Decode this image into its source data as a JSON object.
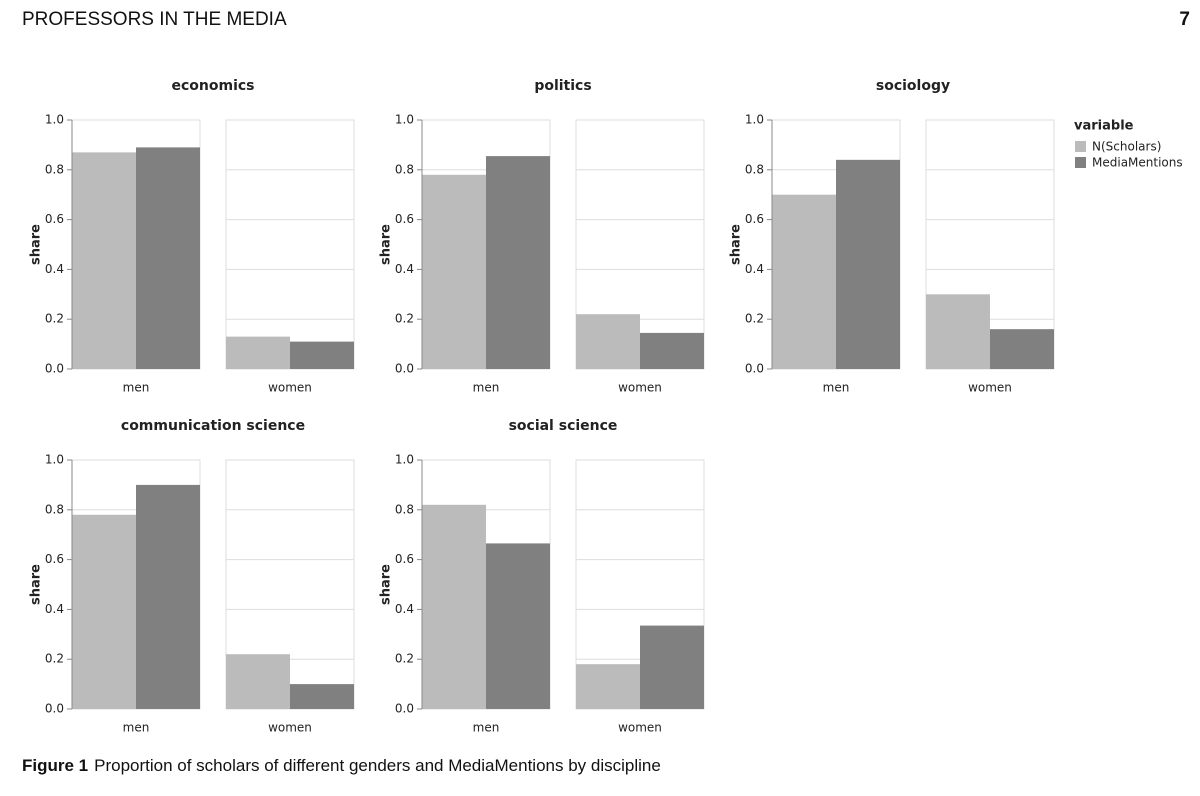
{
  "header": {
    "title": "PROFESSORS IN THE MEDIA",
    "page": "7"
  },
  "legend": {
    "title": "variable",
    "series": [
      {
        "name": "N(Scholars)",
        "color": "#bbbbbb"
      },
      {
        "name": "MediaMentions",
        "color": "#808080"
      }
    ]
  },
  "chart_data": [
    {
      "type": "bar",
      "title": "economics",
      "y_label": "share",
      "categories": [
        "men",
        "women"
      ],
      "series": [
        {
          "values": [
            0.87,
            0.13
          ]
        },
        {
          "values": [
            0.89,
            0.11
          ]
        }
      ],
      "ylim": [
        0,
        1
      ],
      "yticks": [
        {
          "value": 0,
          "label": "0.0"
        },
        0.2,
        0.4,
        0.6,
        0.8,
        {
          "value": 1,
          "label": "1.0"
        }
      ],
      "grid": true
    },
    {
      "type": "bar",
      "title": "politics",
      "y_label": "share",
      "categories": [
        "men",
        "women"
      ],
      "series": [
        {
          "values": [
            0.78,
            0.22
          ]
        },
        {
          "values": [
            0.855,
            0.145
          ]
        }
      ],
      "ylim": [
        0,
        1
      ],
      "yticks": [
        {
          "value": 0,
          "label": "0.0"
        },
        0.2,
        0.4,
        0.6,
        0.8,
        {
          "value": 1,
          "label": "1.0"
        }
      ],
      "grid": true
    },
    {
      "type": "bar",
      "title": "sociology",
      "y_label": "share",
      "categories": [
        "men",
        "women"
      ],
      "series": [
        {
          "values": [
            0.7,
            0.3
          ]
        },
        {
          "values": [
            0.84,
            0.16
          ]
        }
      ],
      "ylim": [
        0,
        1
      ],
      "yticks": [
        {
          "value": 0,
          "label": "0.0"
        },
        0.2,
        0.4,
        0.6,
        0.8,
        {
          "value": 1,
          "label": "1.0"
        }
      ],
      "grid": true
    },
    {
      "type": "bar",
      "title": "communication science",
      "y_label": "share",
      "categories": [
        "men",
        "women"
      ],
      "series": [
        {
          "values": [
            0.78,
            0.22
          ]
        },
        {
          "values": [
            0.9,
            0.1
          ]
        }
      ],
      "ylim": [
        0,
        1
      ],
      "yticks": [
        {
          "value": 0,
          "label": "0.0"
        },
        0.2,
        0.4,
        0.6,
        0.8,
        {
          "value": 1,
          "label": "1.0"
        }
      ],
      "grid": true
    },
    {
      "type": "bar",
      "title": "social science",
      "y_label": "share",
      "categories": [
        "men",
        "women"
      ],
      "series": [
        {
          "values": [
            0.82,
            0.18
          ]
        },
        {
          "values": [
            0.665,
            0.335
          ]
        }
      ],
      "ylim": [
        0,
        1
      ],
      "yticks": [
        {
          "value": 0,
          "label": "0.0"
        },
        0.2,
        0.4,
        0.6,
        0.8,
        {
          "value": 1,
          "label": "1.0"
        }
      ],
      "grid": true
    }
  ],
  "caption": {
    "label": "Figure 1",
    "text": "Proportion of scholars of different genders and MediaMentions by discipline"
  }
}
